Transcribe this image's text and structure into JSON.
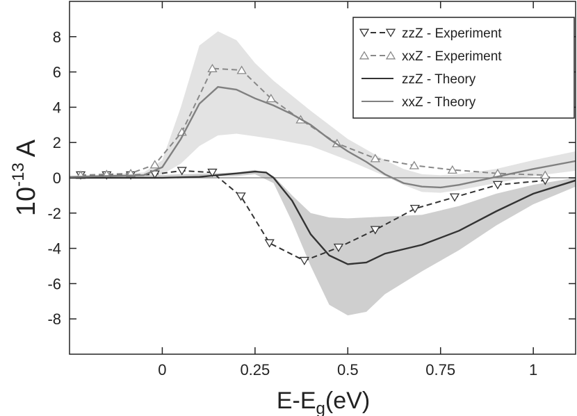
{
  "chart_data": {
    "type": "line",
    "x_label_main": "E-E",
    "x_label_sub": "g",
    "x_label_unit": "(eV)",
    "y_label_base": "10",
    "y_label_exponent": "-13",
    "y_label_unit": "A",
    "xlim": [
      -0.25,
      1.114
    ],
    "xticks": [
      0,
      0.25,
      0.5,
      0.75,
      1
    ],
    "ylim": [
      -10,
      10
    ],
    "yticks": [
      -8,
      -6,
      -4,
      -2,
      0,
      2,
      4,
      6,
      8
    ],
    "reference_line": 0,
    "legend": "upper right",
    "bands": [
      {
        "color": "#e3e3e3",
        "x": [
          -0.25,
          -0.05,
          0,
          0.05,
          0.1,
          0.15,
          0.2,
          0.25,
          0.3,
          0.4,
          0.5,
          0.6,
          0.65,
          0.7,
          0.75,
          0.8,
          0.9,
          1.0,
          1.114
        ],
        "upper": [
          0.1,
          0.3,
          1.0,
          4.0,
          7.5,
          8.3,
          7.8,
          6.5,
          5.5,
          3.8,
          2.2,
          1.0,
          0.5,
          0.2,
          0.15,
          0.2,
          0.5,
          1.0,
          1.5
        ],
        "lower": [
          0,
          0.05,
          0.2,
          0.8,
          1.8,
          2.4,
          2.5,
          2.35,
          2.2,
          1.8,
          1.0,
          0.1,
          -0.4,
          -0.8,
          -0.85,
          -0.7,
          -0.3,
          0.1,
          0.4
        ]
      },
      {
        "color": "#cfcfcf",
        "x": [
          -0.25,
          0.2,
          0.25,
          0.3,
          0.35,
          0.4,
          0.45,
          0.5,
          0.55,
          0.6,
          0.7,
          0.8,
          0.9,
          1.0,
          1.114
        ],
        "upper": [
          0,
          0.3,
          0.45,
          0.1,
          -1.0,
          -2.0,
          -2.25,
          -2.3,
          -2.25,
          -2.2,
          -2.1,
          -1.6,
          -0.9,
          -0.4,
          0
        ],
        "lower": [
          0,
          0.1,
          0.2,
          -0.3,
          -2.5,
          -5.0,
          -7.2,
          -7.8,
          -7.6,
          -6.6,
          -5.3,
          -4.1,
          -2.7,
          -1.5,
          -0.5
        ]
      }
    ],
    "series": [
      {
        "name": "zzZ - Experiment",
        "color": "#333333",
        "dash": true,
        "marker": "triangle-down",
        "x": [
          -0.22,
          -0.15,
          -0.085,
          -0.02,
          0.053,
          0.135,
          0.212,
          0.289,
          0.383,
          0.475,
          0.574,
          0.681,
          0.788,
          0.904,
          1.032
        ],
        "values": [
          0.15,
          0.15,
          0.15,
          0.2,
          0.4,
          0.3,
          -1.05,
          -3.7,
          -4.7,
          -3.95,
          -2.95,
          -1.75,
          -1.1,
          -0.4,
          -0.15
        ]
      },
      {
        "name": "xxZ - Experiment",
        "color": "#888888",
        "dash": true,
        "marker": "triangle-up",
        "x": [
          -0.22,
          -0.15,
          -0.085,
          -0.02,
          0.053,
          0.135,
          0.214,
          0.293,
          0.373,
          0.471,
          0.574,
          0.679,
          0.782,
          0.904,
          1.032
        ],
        "values": [
          0.15,
          0.2,
          0.25,
          0.75,
          2.6,
          6.2,
          6.1,
          4.5,
          3.3,
          1.95,
          1.1,
          0.7,
          0.45,
          0.25,
          0.15
        ]
      },
      {
        "name": "zzZ - Theory",
        "color": "#333333",
        "dash": false,
        "marker": "none",
        "x": [
          -0.25,
          0,
          0.1,
          0.2,
          0.25,
          0.28,
          0.3,
          0.35,
          0.4,
          0.45,
          0.5,
          0.55,
          0.6,
          0.7,
          0.8,
          0.9,
          1.0,
          1.114
        ],
        "values": [
          0,
          0,
          0.05,
          0.25,
          0.35,
          0.3,
          0,
          -1.3,
          -3.2,
          -4.4,
          -4.9,
          -4.8,
          -4.3,
          -3.8,
          -3.0,
          -1.9,
          -0.9,
          -0.15
        ]
      },
      {
        "name": "xxZ - Theory",
        "color": "#808080",
        "dash": false,
        "marker": "none",
        "x": [
          -0.25,
          -0.05,
          0,
          0.05,
          0.1,
          0.15,
          0.2,
          0.25,
          0.3,
          0.35,
          0.4,
          0.45,
          0.5,
          0.55,
          0.6,
          0.65,
          0.7,
          0.75,
          0.8,
          0.9,
          1.0,
          1.114
        ],
        "values": [
          0.05,
          0.15,
          0.6,
          2.2,
          4.2,
          5.15,
          5.0,
          4.5,
          4.1,
          3.6,
          3.0,
          2.2,
          1.5,
          0.9,
          0.2,
          -0.3,
          -0.5,
          -0.55,
          -0.4,
          0.05,
          0.5,
          0.95
        ]
      }
    ]
  }
}
